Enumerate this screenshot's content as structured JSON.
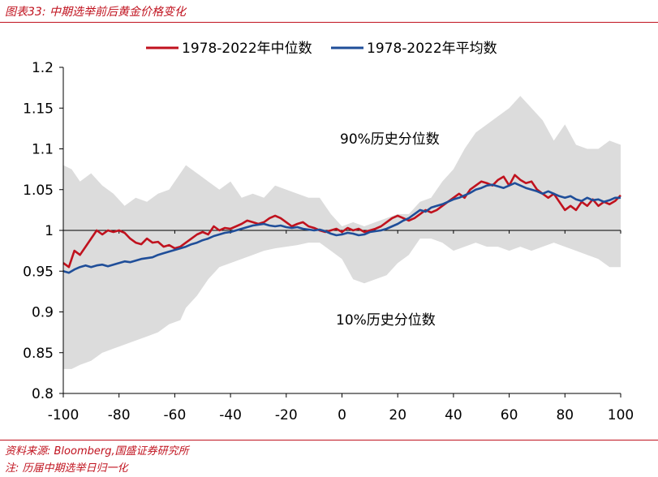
{
  "header": {
    "title": "图表33:  中期选举前后黄金价格变化"
  },
  "footer": {
    "source": "资料来源:  Bloomberg,国盛证券研究所",
    "note": "注:  历届中期选举日归一化"
  },
  "colors": {
    "median": "#c0121e",
    "mean": "#1f4e99",
    "band": "#dcdcdc",
    "axis": "#000000",
    "accent": "#c0121e"
  },
  "chart_data": {
    "type": "line",
    "xlim": [
      -100,
      100
    ],
    "ylim": [
      0.8,
      1.2
    ],
    "xticks": [
      "-100",
      "-80",
      "-60",
      "-40",
      "-20",
      "0",
      "20",
      "40",
      "60",
      "80",
      "100"
    ],
    "yticks": [
      "0.8",
      "0.85",
      "0.9",
      "0.95",
      "1",
      "1.05",
      "1.1",
      "1.15",
      "1.2"
    ],
    "legend_position": "top-center",
    "annotations": {
      "upper": "90%历史分位数",
      "lower": "10%历史分位数"
    },
    "band": {
      "x": [
        -100,
        -97,
        -94,
        -90,
        -86,
        -82,
        -78,
        -74,
        -70,
        -66,
        -62,
        -58,
        -56,
        -52,
        -48,
        -44,
        -40,
        -36,
        -32,
        -28,
        -24,
        -20,
        -16,
        -12,
        -8,
        -4,
        0,
        4,
        8,
        12,
        16,
        20,
        24,
        28,
        32,
        36,
        40,
        44,
        48,
        52,
        56,
        60,
        64,
        68,
        72,
        76,
        80,
        84,
        88,
        92,
        96,
        100
      ],
      "upper": [
        1.08,
        1.075,
        1.06,
        1.07,
        1.055,
        1.045,
        1.03,
        1.04,
        1.035,
        1.045,
        1.05,
        1.07,
        1.08,
        1.07,
        1.06,
        1.05,
        1.06,
        1.04,
        1.045,
        1.04,
        1.055,
        1.05,
        1.045,
        1.04,
        1.04,
        1.02,
        1.005,
        1.01,
        1.005,
        1.01,
        1.015,
        1.02,
        1.02,
        1.035,
        1.04,
        1.06,
        1.075,
        1.1,
        1.12,
        1.13,
        1.14,
        1.15,
        1.165,
        1.15,
        1.135,
        1.11,
        1.13,
        1.105,
        1.1,
        1.1,
        1.11,
        1.105
      ],
      "lower": [
        0.83,
        0.83,
        0.835,
        0.84,
        0.85,
        0.855,
        0.86,
        0.865,
        0.87,
        0.875,
        0.885,
        0.89,
        0.905,
        0.92,
        0.94,
        0.955,
        0.96,
        0.965,
        0.97,
        0.975,
        0.978,
        0.98,
        0.982,
        0.985,
        0.985,
        0.975,
        0.965,
        0.94,
        0.935,
        0.94,
        0.945,
        0.96,
        0.97,
        0.99,
        0.99,
        0.985,
        0.975,
        0.98,
        0.985,
        0.98,
        0.98,
        0.975,
        0.98,
        0.975,
        0.98,
        0.985,
        0.98,
        0.975,
        0.97,
        0.965,
        0.955,
        0.955
      ]
    },
    "series": [
      {
        "name": "1978-2022年中位数",
        "x": [
          -100,
          -98,
          -96,
          -94,
          -92,
          -90,
          -88,
          -86,
          -84,
          -82,
          -80,
          -78,
          -76,
          -74,
          -72,
          -70,
          -68,
          -66,
          -64,
          -62,
          -60,
          -58,
          -56,
          -54,
          -52,
          -50,
          -48,
          -46,
          -44,
          -42,
          -40,
          -38,
          -36,
          -34,
          -32,
          -30,
          -28,
          -26,
          -24,
          -22,
          -20,
          -18,
          -16,
          -14,
          -12,
          -10,
          -8,
          -6,
          -4,
          -2,
          0,
          2,
          4,
          6,
          8,
          10,
          12,
          14,
          16,
          18,
          20,
          22,
          24,
          26,
          28,
          30,
          32,
          34,
          36,
          38,
          40,
          42,
          44,
          46,
          48,
          50,
          52,
          54,
          56,
          58,
          60,
          62,
          64,
          66,
          68,
          70,
          72,
          74,
          76,
          78,
          80,
          82,
          84,
          86,
          88,
          90,
          92,
          94,
          96,
          98,
          100
        ],
        "values": [
          0.96,
          0.955,
          0.975,
          0.97,
          0.98,
          0.99,
          1.0,
          0.995,
          1.0,
          0.998,
          1.0,
          0.997,
          0.99,
          0.985,
          0.983,
          0.99,
          0.985,
          0.986,
          0.98,
          0.982,
          0.978,
          0.98,
          0.985,
          0.99,
          0.995,
          0.998,
          0.995,
          1.005,
          1.0,
          1.003,
          1.002,
          1.005,
          1.008,
          1.012,
          1.01,
          1.008,
          1.01,
          1.015,
          1.018,
          1.015,
          1.01,
          1.005,
          1.008,
          1.01,
          1.005,
          1.003,
          1.0,
          0.998,
          1.0,
          1.002,
          0.998,
          1.003,
          1.0,
          1.002,
          0.998,
          1.0,
          1.002,
          1.005,
          1.01,
          1.015,
          1.018,
          1.015,
          1.012,
          1.015,
          1.02,
          1.025,
          1.022,
          1.025,
          1.03,
          1.035,
          1.04,
          1.045,
          1.04,
          1.05,
          1.055,
          1.06,
          1.058,
          1.055,
          1.062,
          1.066,
          1.055,
          1.068,
          1.062,
          1.058,
          1.06,
          1.05,
          1.045,
          1.04,
          1.045,
          1.035,
          1.025,
          1.03,
          1.025,
          1.035,
          1.03,
          1.038,
          1.03,
          1.035,
          1.032,
          1.036,
          1.043
        ]
      },
      {
        "name": "1978-2022年平均数",
        "x": [
          -100,
          -98,
          -96,
          -94,
          -92,
          -90,
          -88,
          -86,
          -84,
          -82,
          -80,
          -78,
          -76,
          -74,
          -72,
          -70,
          -68,
          -66,
          -64,
          -62,
          -60,
          -58,
          -56,
          -54,
          -52,
          -50,
          -48,
          -46,
          -44,
          -42,
          -40,
          -38,
          -36,
          -34,
          -32,
          -30,
          -28,
          -26,
          -24,
          -22,
          -20,
          -18,
          -16,
          -14,
          -12,
          -10,
          -8,
          -6,
          -4,
          -2,
          0,
          2,
          4,
          6,
          8,
          10,
          12,
          14,
          16,
          18,
          20,
          22,
          24,
          26,
          28,
          30,
          32,
          34,
          36,
          38,
          40,
          42,
          44,
          46,
          48,
          50,
          52,
          54,
          56,
          58,
          60,
          62,
          64,
          66,
          68,
          70,
          72,
          74,
          76,
          78,
          80,
          82,
          84,
          86,
          88,
          90,
          92,
          94,
          96,
          98,
          100
        ],
        "values": [
          0.95,
          0.948,
          0.952,
          0.955,
          0.957,
          0.955,
          0.957,
          0.958,
          0.956,
          0.958,
          0.96,
          0.962,
          0.961,
          0.963,
          0.965,
          0.966,
          0.967,
          0.97,
          0.972,
          0.974,
          0.976,
          0.978,
          0.98,
          0.983,
          0.985,
          0.988,
          0.99,
          0.993,
          0.995,
          0.997,
          0.998,
          1.0,
          1.002,
          1.004,
          1.006,
          1.007,
          1.008,
          1.006,
          1.005,
          1.006,
          1.004,
          1.003,
          1.004,
          1.002,
          1.001,
          1.0,
          1.001,
          0.999,
          0.996,
          0.994,
          0.995,
          0.997,
          0.996,
          0.994,
          0.995,
          0.998,
          0.999,
          1.0,
          1.002,
          1.005,
          1.008,
          1.012,
          1.015,
          1.02,
          1.025,
          1.023,
          1.028,
          1.03,
          1.032,
          1.035,
          1.038,
          1.04,
          1.043,
          1.046,
          1.05,
          1.052,
          1.055,
          1.056,
          1.054,
          1.052,
          1.055,
          1.058,
          1.055,
          1.052,
          1.05,
          1.048,
          1.045,
          1.048,
          1.045,
          1.042,
          1.04,
          1.042,
          1.038,
          1.036,
          1.04,
          1.037,
          1.038,
          1.035,
          1.037,
          1.04,
          1.04
        ]
      }
    ]
  }
}
